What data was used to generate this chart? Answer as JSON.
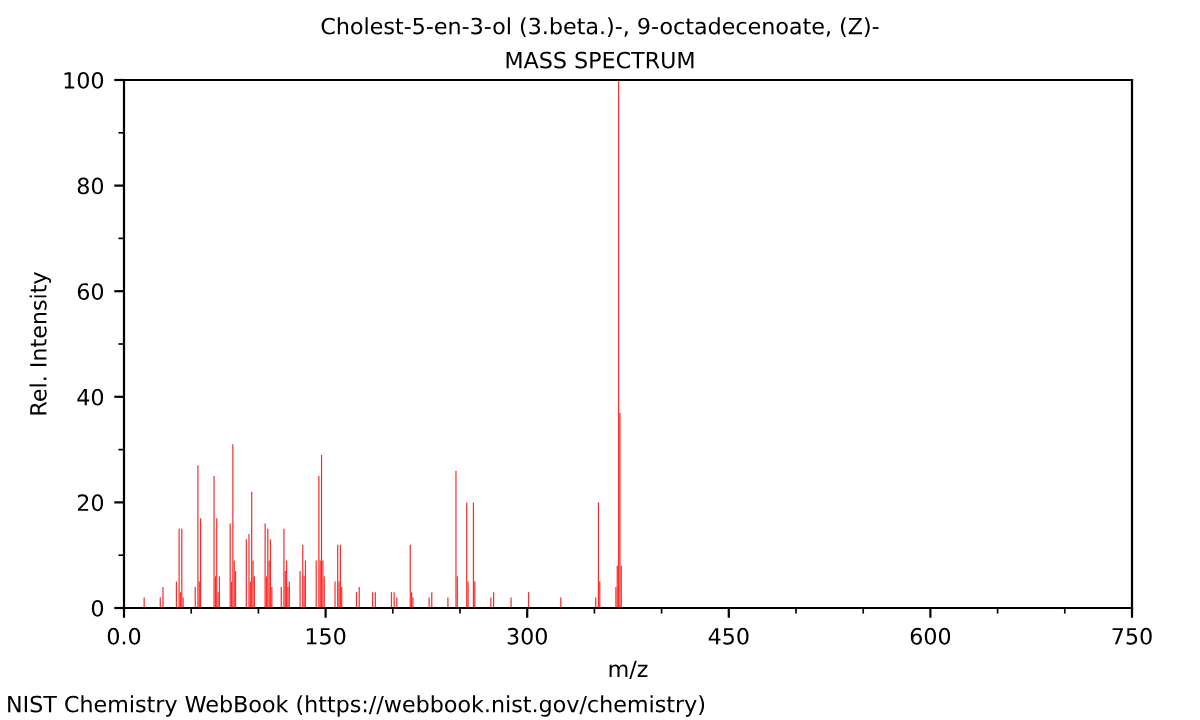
{
  "chart_data": {
    "type": "bar",
    "title": "Cholest-5-en-3-ol (3.beta.)-, 9-octadecenoate, (Z)-",
    "subtitle": "MASS SPECTRUM",
    "xlabel": "m/z",
    "ylabel": "Rel. Intensity",
    "annotations": [
      "NIST Chemistry WebBook (https://webbook.nist.gov/chemistry)"
    ],
    "x": [
      15,
      27,
      29,
      39,
      41,
      42,
      43,
      44,
      53,
      55,
      56,
      57,
      67,
      68,
      69,
      70,
      71,
      79,
      80,
      81,
      82,
      83,
      91,
      93,
      94,
      95,
      96,
      97,
      105,
      106,
      107,
      108,
      109,
      110,
      117,
      119,
      120,
      121,
      122,
      123,
      131,
      133,
      134,
      135,
      143,
      145,
      146,
      147,
      148,
      149,
      157,
      159,
      160,
      161,
      162,
      173,
      175,
      185,
      187,
      199,
      201,
      203,
      213,
      214,
      215,
      227,
      229,
      241,
      247,
      248,
      255,
      256,
      260,
      261,
      273,
      275,
      288,
      301,
      325,
      351,
      353,
      354,
      366,
      367,
      368,
      369,
      370
    ],
    "values": [
      2,
      2,
      4,
      5,
      15,
      3,
      15,
      2,
      4,
      27,
      5,
      17,
      25,
      6,
      17,
      3,
      6,
      16,
      5,
      31,
      9,
      7,
      13,
      14,
      5,
      22,
      9,
      6,
      16,
      6,
      15,
      9,
      13,
      4,
      4,
      15,
      7,
      9,
      4,
      5,
      7,
      12,
      6,
      9,
      9,
      25,
      9,
      29,
      9,
      6,
      5,
      12,
      5,
      12,
      4,
      3,
      4,
      3,
      3,
      3,
      3,
      2,
      12,
      3,
      2,
      2,
      3,
      2,
      26,
      6,
      20,
      5,
      20,
      5,
      2,
      3,
      2,
      3,
      2,
      2,
      20,
      5,
      4,
      8,
      100,
      37,
      8
    ],
    "color": "#ff2a2a",
    "xlim": [
      0,
      750
    ],
    "ylim": [
      0,
      100
    ],
    "xticks": [
      {
        "value": 0,
        "label": "0.0"
      },
      150,
      300,
      450,
      600,
      750,
      {
        "value": 50,
        "label": null
      },
      {
        "value": 100,
        "label": null
      },
      {
        "value": 200,
        "label": null
      },
      {
        "value": 250,
        "label": null
      },
      {
        "value": 350,
        "label": null
      },
      {
        "value": 400,
        "label": null
      },
      {
        "value": 500,
        "label": null
      },
      {
        "value": 550,
        "label": null
      },
      {
        "value": 650,
        "label": null
      },
      {
        "value": 700,
        "label": null
      }
    ],
    "yticks": [
      0,
      20,
      40,
      60,
      80,
      100,
      {
        "value": 10,
        "label": null
      },
      {
        "value": 30,
        "label": null
      },
      {
        "value": 50,
        "label": null
      },
      {
        "value": 70,
        "label": null
      },
      {
        "value": 90,
        "label": null
      }
    ],
    "grid": false,
    "legend": false
  }
}
